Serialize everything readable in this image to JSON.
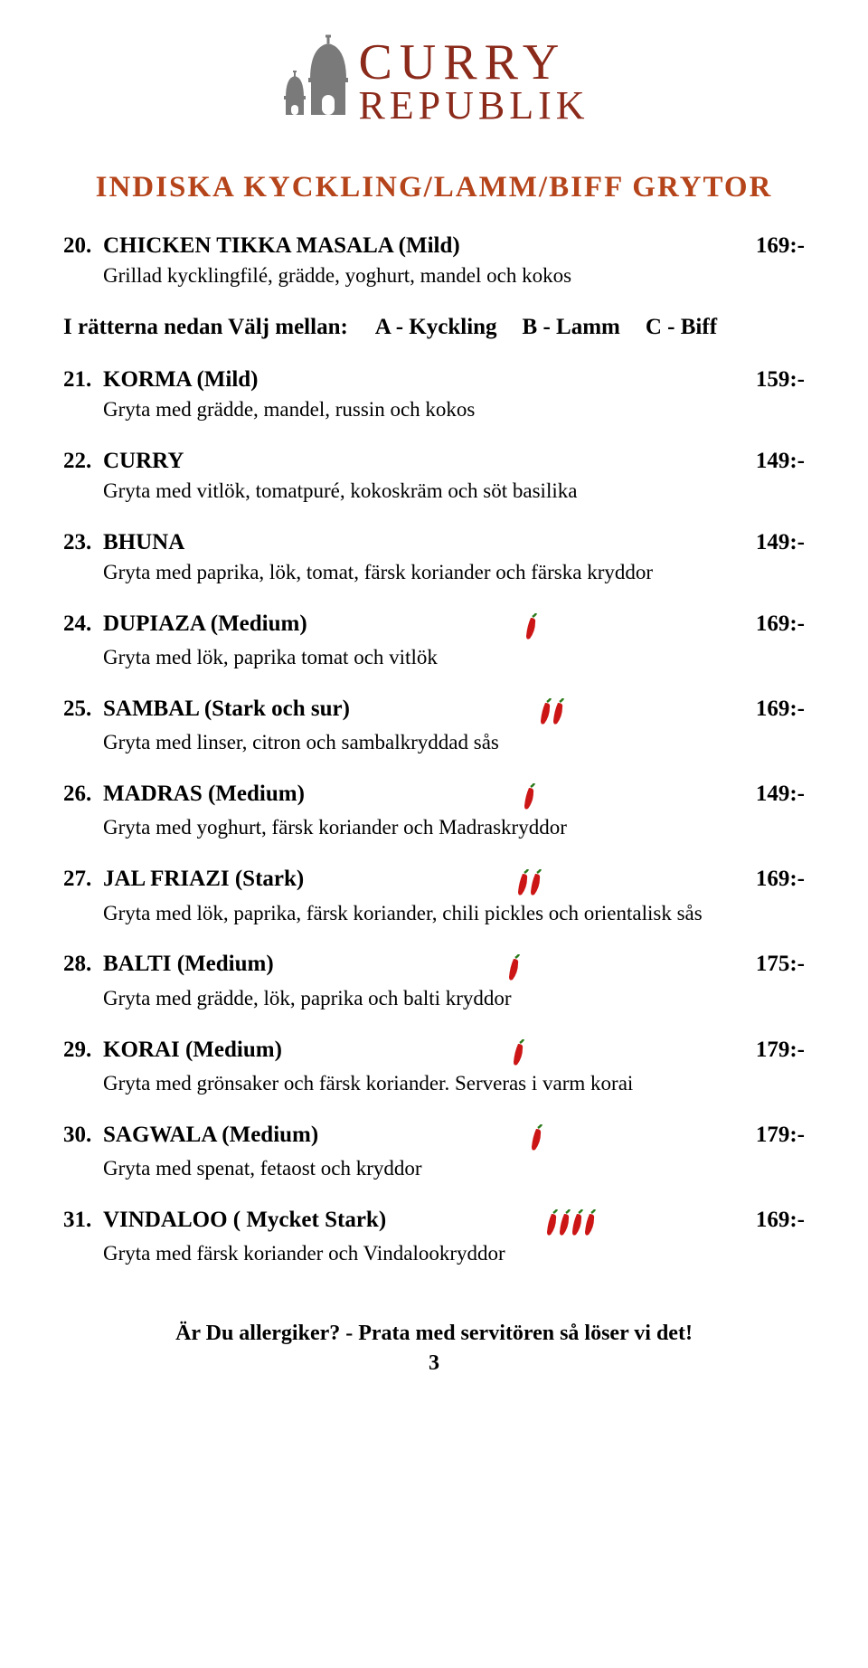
{
  "logo": {
    "line1": "CURRY",
    "line2": "REPUBLIK",
    "text_color": "#8b2a1a",
    "dome_color": "#7a7a7a"
  },
  "section_title": "INDISKA KYCKLING/LAMM/BIFF GRYTOR",
  "section_title_color": "#b5441a",
  "choice": {
    "label": "I rätterna nedan Välj mellan:",
    "options": [
      "A - Kyckling",
      "B - Lamm",
      "C - Biff"
    ]
  },
  "chili_color": "#cc1616",
  "items": [
    {
      "num": "20.",
      "name": "CHICKEN TIKKA MASALA (Mild)",
      "price": "169:-",
      "chili": 0,
      "desc": "Grillad kycklingfilé, grädde, yoghurt, mandel och kokos",
      "after_choice": false
    },
    {
      "num": "21.",
      "name": "KORMA (Mild)",
      "price": "159:-",
      "chili": 0,
      "desc": "Gryta med grädde, mandel, russin och kokos",
      "after_choice": true
    },
    {
      "num": "22.",
      "name": "CURRY",
      "price": "149:-",
      "chili": 0,
      "desc": "Gryta med vitlök, tomatpuré, kokoskräm och söt basilika",
      "after_choice": true
    },
    {
      "num": "23.",
      "name": "BHUNA",
      "price": "149:-",
      "chili": 0,
      "desc": "Gryta med paprika, lök, tomat, färsk koriander och färska kryddor",
      "after_choice": true
    },
    {
      "num": "24.",
      "name": "DUPIAZA (Medium)",
      "price": "169:-",
      "chili": 1,
      "desc": "Gryta med lök, paprika tomat och vitlök",
      "after_choice": true
    },
    {
      "num": "25.",
      "name": "SAMBAL (Stark och sur)",
      "price": "169:-",
      "chili": 2,
      "desc": "Gryta med linser, citron och sambalkryddad sås",
      "after_choice": true
    },
    {
      "num": "26.",
      "name": "MADRAS (Medium)",
      "price": "149:-",
      "chili": 1,
      "desc": "Gryta med yoghurt, färsk koriander och Madraskryddor",
      "after_choice": true
    },
    {
      "num": "27.",
      "name": "JAL FRIAZI (Stark)",
      "price": "169:-",
      "chili": 2,
      "desc": "Gryta med lök, paprika, färsk koriander,  chili pickles och orientalisk sås",
      "after_choice": true
    },
    {
      "num": "28.",
      "name": "BALTI (Medium)",
      "price": "175:-",
      "chili": 1,
      "desc": "Gryta med grädde, lök, paprika och balti kryddor",
      "after_choice": true
    },
    {
      "num": "29.",
      "name": "KORAI (Medium)",
      "price": "179:-",
      "chili": 1,
      "desc": "Gryta med grönsaker och färsk koriander. Serveras i varm korai",
      "after_choice": true
    },
    {
      "num": "30.",
      "name": "SAGWALA (Medium)",
      "price": "179:-",
      "chili": 1,
      "desc": "Gryta med spenat, fetaost och kryddor",
      "after_choice": true
    },
    {
      "num": "31.",
      "name": "VINDALOO ( Mycket Stark)",
      "price": "169:-",
      "chili": 4,
      "desc": "Gryta med färsk koriander och Vindalookryddor",
      "after_choice": true
    }
  ],
  "footer": {
    "text": "Är Du allergiker? - Prata med servitören så löser vi det!",
    "page": "3"
  }
}
